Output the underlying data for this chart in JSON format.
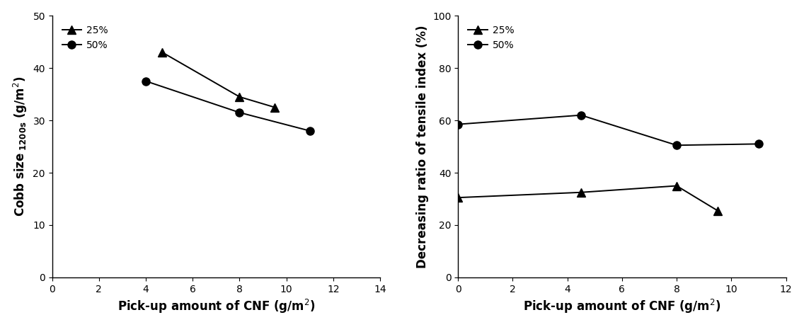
{
  "left": {
    "series_25": {
      "x": [
        4.7,
        8.0,
        9.5
      ],
      "y": [
        43.0,
        34.5,
        32.5
      ],
      "label": "25%",
      "marker": "^",
      "color": "black"
    },
    "series_50": {
      "x": [
        4.0,
        8.0,
        11.0
      ],
      "y": [
        37.5,
        31.5,
        28.0
      ],
      "label": "50%",
      "marker": "o",
      "color": "black"
    },
    "xlim": [
      0,
      14
    ],
    "ylim": [
      0,
      50
    ],
    "xticks": [
      0,
      2,
      4,
      6,
      8,
      10,
      12,
      14
    ],
    "yticks": [
      0,
      10,
      20,
      30,
      40,
      50
    ]
  },
  "right": {
    "series_25": {
      "x": [
        0.0,
        4.5,
        8.0,
        9.5
      ],
      "y": [
        30.5,
        32.5,
        35.0,
        25.5
      ],
      "label": "25%",
      "marker": "^",
      "color": "black"
    },
    "series_50": {
      "x": [
        0.0,
        4.5,
        8.0,
        11.0
      ],
      "y": [
        58.5,
        62.0,
        50.5,
        51.0
      ],
      "label": "50%",
      "marker": "o",
      "color": "black"
    },
    "xlim": [
      0,
      12
    ],
    "ylim": [
      0,
      100
    ],
    "xticks": [
      0,
      2,
      4,
      6,
      8,
      10,
      12
    ],
    "yticks": [
      0,
      20,
      40,
      60,
      80,
      100
    ]
  },
  "marker_size": 8,
  "line_width": 1.4,
  "font_size_label": 12,
  "font_size_tick": 10,
  "font_size_legend": 10,
  "legend_loc": "upper left"
}
